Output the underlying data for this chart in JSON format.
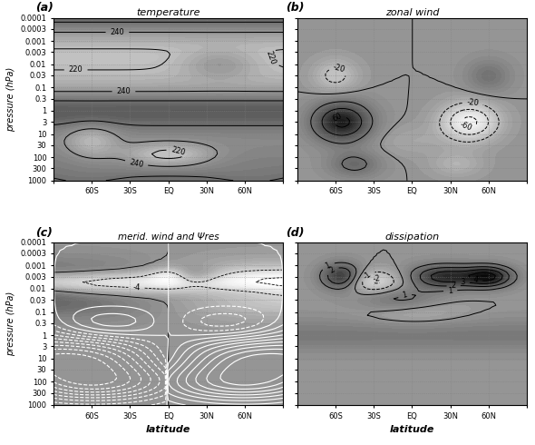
{
  "title_a": "temperature",
  "title_b": "zonal wind",
  "title_c": "merid. wind and Ψres",
  "title_d": "dissipation",
  "label_a": "(a)",
  "label_b": "(b)",
  "label_c": "(c)",
  "label_d": "(d)",
  "xlabel": "latitude",
  "ylabel": "pressure (hPa)",
  "lat_ticks": [
    -90,
    -60,
    -30,
    0,
    30,
    60,
    90
  ],
  "lat_labels": [
    "",
    "60S",
    "30S",
    "EQ",
    "30N",
    "60N",
    ""
  ],
  "pres_levels": [
    0.0001,
    0.0003,
    0.001,
    0.003,
    0.01,
    0.03,
    0.1,
    0.3,
    1,
    3,
    10,
    30,
    100,
    300,
    1000
  ],
  "bg_color": "#c8c8c8",
  "fig_bg": "#ffffff"
}
